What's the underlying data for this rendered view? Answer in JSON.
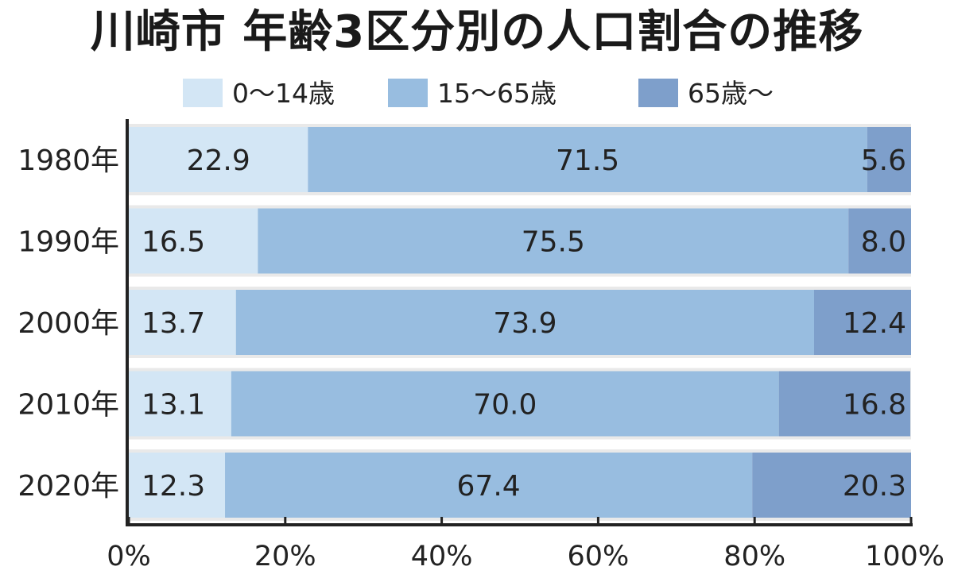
{
  "chart_data": {
    "type": "bar",
    "orientation": "horizontal",
    "stacked": true,
    "title": "川崎市 年齢3区分別の人口割合の推移",
    "categories": [
      "1980年",
      "1990年",
      "2000年",
      "2010年",
      "2020年"
    ],
    "series": [
      {
        "name": "0〜14歳",
        "values": [
          22.9,
          16.5,
          13.7,
          13.1,
          12.3
        ],
        "color": "#d3e6f5"
      },
      {
        "name": "15〜65歳",
        "values": [
          71.5,
          75.5,
          73.9,
          70.0,
          67.4
        ],
        "color": "#98bde0"
      },
      {
        "name": "65歳〜",
        "values": [
          5.6,
          8.0,
          12.4,
          16.8,
          20.3
        ],
        "color": "#7e9fcb"
      }
    ],
    "value_labels": [
      [
        "22.9",
        "71.5",
        "5.6"
      ],
      [
        "16.5",
        "75.5",
        "8.0"
      ],
      [
        "13.7",
        "73.9",
        "12.4"
      ],
      [
        "13.1",
        "70.0",
        "16.8"
      ],
      [
        "12.3",
        "67.4",
        "20.3"
      ]
    ],
    "xlim": [
      0,
      100
    ],
    "xticks": [
      0,
      20,
      40,
      60,
      80,
      100
    ],
    "xtick_labels": [
      "0%",
      "20%",
      "40%",
      "60%",
      "80%",
      "100%"
    ],
    "xlabel": "",
    "ylabel": "",
    "grid": false,
    "legend_position": "top-center",
    "background_band_color": "#e9e9e9"
  }
}
